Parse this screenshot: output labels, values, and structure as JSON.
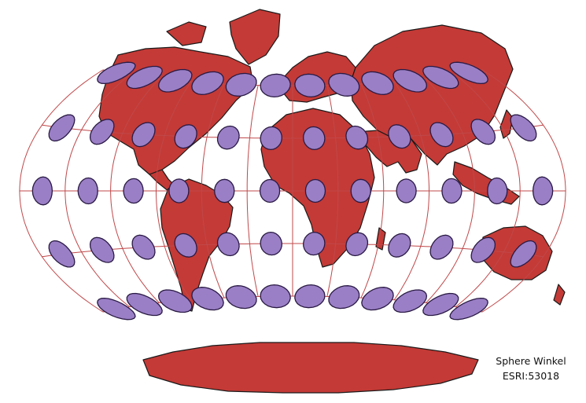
{
  "map": {
    "caption": {
      "projection_name": "Sphere Winkel",
      "code": "ESRI:53018"
    },
    "colors": {
      "land": "#c43a36",
      "land_outline": "#1a1a1a",
      "graticule": "#c0484a",
      "ellipse_fill": "#9a7fc6",
      "ellipse_outline": "#2a1a44",
      "background": "#ffffff"
    },
    "graticule": {
      "meridians_deg": [
        -150,
        -120,
        -90,
        -60,
        -30,
        0,
        30,
        60,
        90,
        120,
        150
      ],
      "parallels_deg": [
        -60,
        -30,
        0,
        30,
        60
      ]
    },
    "indicatrix_centers": {
      "lon_deg": [
        -165,
        -135,
        -105,
        -75,
        -45,
        -15,
        15,
        45,
        75,
        105,
        135,
        165
      ],
      "lat_deg": [
        60,
        30,
        0,
        -30,
        -60
      ]
    }
  }
}
